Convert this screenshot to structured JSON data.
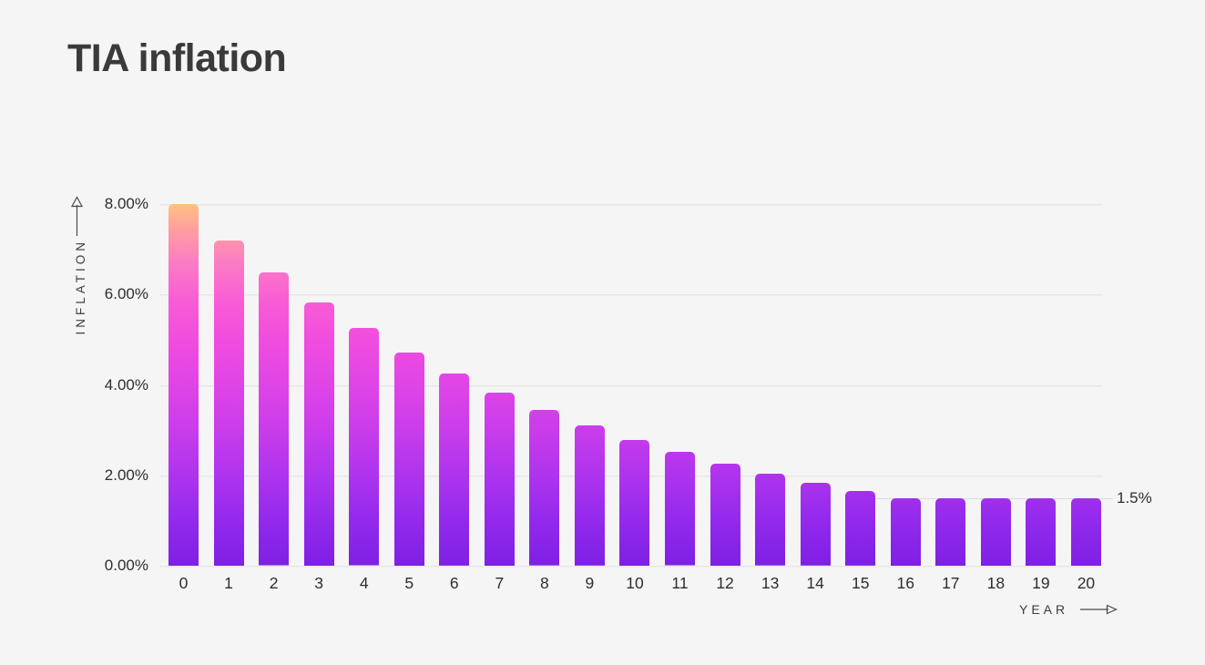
{
  "page": {
    "background": "#F5F5F5"
  },
  "title": {
    "text": "TIA inflation",
    "color": "#3A3A3A"
  },
  "chart_data": {
    "type": "bar",
    "title": "TIA inflation",
    "xlabel": "YEAR",
    "ylabel": "INFLATION",
    "categories": [
      "0",
      "1",
      "2",
      "3",
      "4",
      "5",
      "6",
      "7",
      "8",
      "9",
      "10",
      "11",
      "12",
      "13",
      "14",
      "15",
      "16",
      "17",
      "18",
      "19",
      "20"
    ],
    "values": [
      8.0,
      7.2,
      6.48,
      5.83,
      5.25,
      4.72,
      4.25,
      3.83,
      3.44,
      3.1,
      2.79,
      2.51,
      2.26,
      2.03,
      1.83,
      1.65,
      1.5,
      1.5,
      1.5,
      1.5,
      1.5
    ],
    "ylim": [
      0,
      8
    ],
    "yticks": [
      {
        "label": "8.00%",
        "value": 8
      },
      {
        "label": "6.00%",
        "value": 6
      },
      {
        "label": "4.00%",
        "value": 4
      },
      {
        "label": "2.00%",
        "value": 2
      },
      {
        "label": "0.00%",
        "value": 0
      }
    ],
    "grid": true,
    "legend": "none",
    "annotation": {
      "label": "1.5%",
      "value": 1.5
    },
    "bar_gradient": [
      {
        "color": "#FFC183",
        "pos": 0
      },
      {
        "color": "#FE9F9E",
        "pos": 7
      },
      {
        "color": "#FB7CC4",
        "pos": 16
      },
      {
        "color": "#F95CD6",
        "pos": 27
      },
      {
        "color": "#F04CDF",
        "pos": 38
      },
      {
        "color": "#DF45E6",
        "pos": 50
      },
      {
        "color": "#C83CEB",
        "pos": 63
      },
      {
        "color": "#AC33EE",
        "pos": 76
      },
      {
        "color": "#9229EC",
        "pos": 88
      },
      {
        "color": "#7E20E4",
        "pos": 100
      }
    ],
    "colors": {
      "grid": "#E6E6E6",
      "axis_text": "#2E2E2E",
      "caption_text": "#3D3D3D",
      "annotation_line": "#DBDBDB",
      "arrow": "#4A4A4A"
    }
  },
  "icons": {
    "y_axis_arrow": "up-arrow-icon",
    "x_axis_arrow": "right-arrow-icon"
  }
}
